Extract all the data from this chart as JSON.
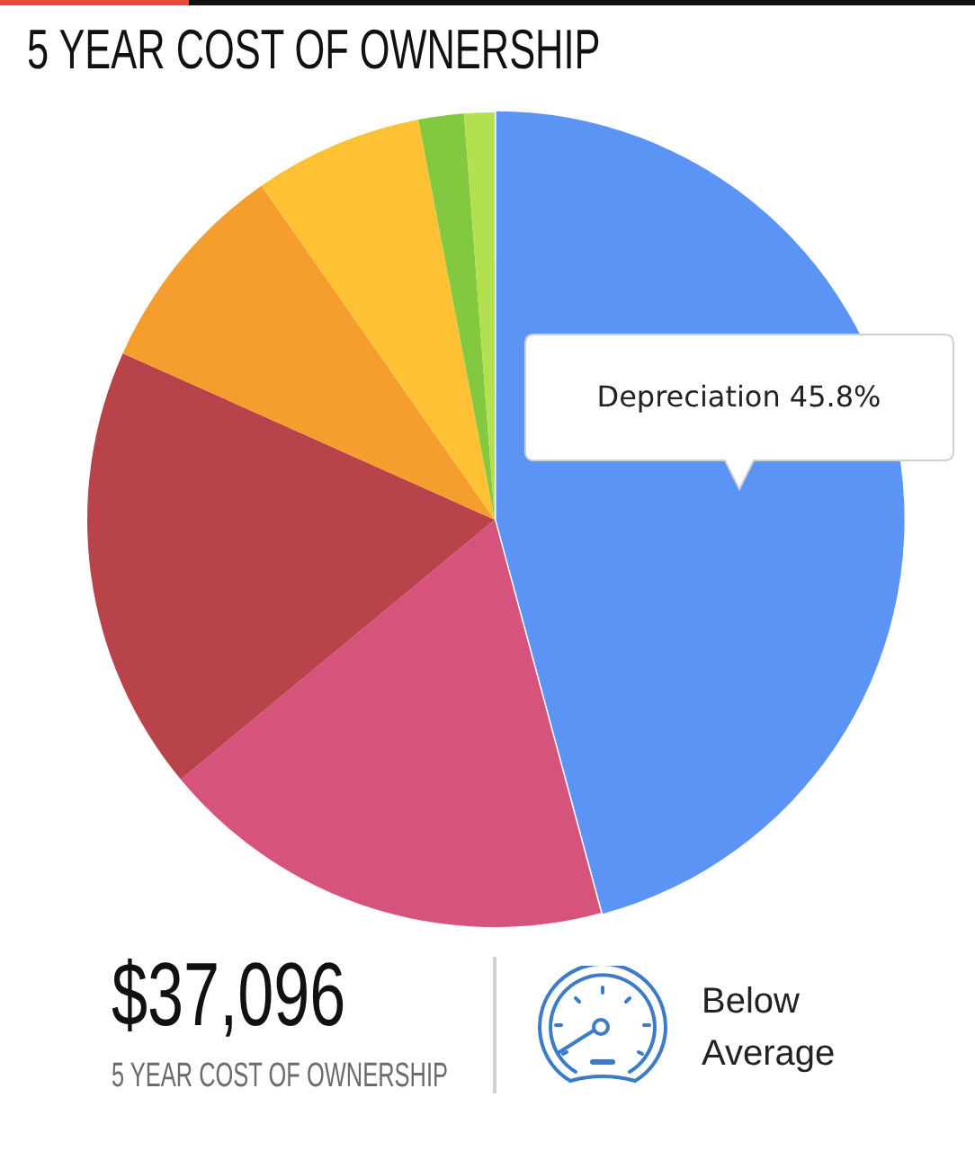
{
  "chart_data": {
    "type": "pie",
    "title": "5 YEAR COST OF OWNERSHIP",
    "categories": [
      "Depreciation",
      null,
      null,
      null,
      null,
      null,
      null
    ],
    "values": [
      45.8,
      18.2,
      17.7,
      8.6,
      6.7,
      1.8,
      1.2
    ],
    "colors": [
      "#5b94f4",
      "#d6547c",
      "#b8434b",
      "#f59e2e",
      "#fec133",
      "#83c93f",
      "#b3e04f"
    ],
    "value_labels": [
      "45.8%",
      null,
      null,
      null,
      null,
      null,
      null
    ],
    "annotations": [
      "$37,096",
      "5 YEAR COST OF OWNERSHIP",
      "Below Average"
    ]
  }
}
